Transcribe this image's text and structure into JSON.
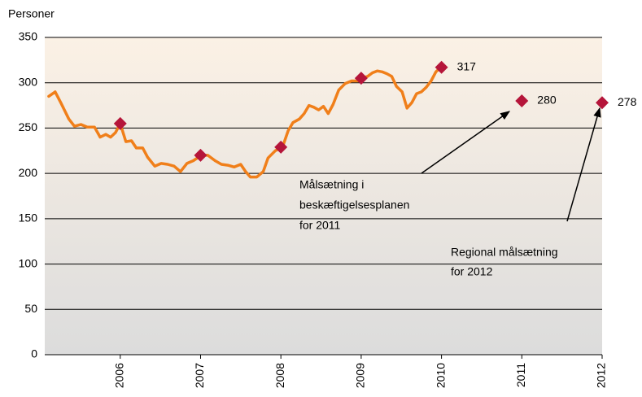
{
  "chart_data": {
    "type": "line",
    "ylabel": "Personer",
    "xlim": [
      2005.06,
      2012
    ],
    "xticks": [
      2006,
      2007,
      2008,
      2009,
      2010,
      2011,
      2012
    ],
    "ylim": [
      0,
      350
    ],
    "yticks": [
      0,
      50,
      100,
      150,
      200,
      250,
      300,
      350
    ],
    "grid": true,
    "series": [
      {
        "color": "#f07f1a",
        "x": [
          2005.11,
          2005.19,
          2005.26,
          2005.36,
          2005.43,
          2005.51,
          2005.59,
          2005.68,
          2005.75,
          2005.82,
          2005.88,
          2005.94,
          2006.0,
          2006.07,
          2006.14,
          2006.2,
          2006.28,
          2006.34,
          2006.43,
          2006.51,
          2006.59,
          2006.67,
          2006.75,
          2006.83,
          2006.91,
          2007.01,
          2007.09,
          2007.18,
          2007.26,
          2007.34,
          2007.42,
          2007.5,
          2007.56,
          2007.62,
          2007.7,
          2007.78,
          2007.84,
          2007.93,
          2008.02,
          2008.09,
          2008.15,
          2008.23,
          2008.29,
          2008.35,
          2008.41,
          2008.47,
          2008.53,
          2008.59,
          2008.65,
          2008.72,
          2008.8,
          2008.88,
          2008.96,
          2009.01,
          2009.08,
          2009.14,
          2009.2,
          2009.26,
          2009.32,
          2009.38,
          2009.44,
          2009.51,
          2009.57,
          2009.63,
          2009.69,
          2009.75,
          2009.81,
          2009.87,
          2009.93,
          2009.99
        ],
        "values": [
          285,
          290,
          278,
          260,
          252,
          254,
          251,
          251,
          240,
          243,
          240,
          245,
          255,
          235,
          236,
          228,
          228,
          218,
          208,
          211,
          210,
          208,
          202,
          211,
          214,
          220,
          220,
          214,
          210,
          209,
          207,
          210,
          202,
          196,
          196,
          202,
          217,
          225,
          229,
          247,
          256,
          260,
          266,
          275,
          273,
          270,
          274,
          266,
          276,
          292,
          299,
          302,
          302,
          305,
          307,
          311,
          313,
          312,
          310,
          307,
          296,
          290,
          272,
          278,
          288,
          290,
          295,
          302,
          312,
          317
        ]
      },
      {
        "color": "#b5153a",
        "marker": "diamond",
        "x": [
          2006,
          2007,
          2008,
          2009,
          2010,
          2011,
          2012
        ],
        "values": [
          255,
          220,
          229,
          305,
          317,
          280,
          278
        ],
        "value_labels": [
          null,
          null,
          null,
          null,
          "317",
          "280",
          "278"
        ]
      }
    ],
    "annotations": [
      {
        "lines": [
          "Målsætning i",
          "beskæftigelsesplanen",
          "for 2011"
        ]
      },
      {
        "lines": [
          "Regional målsætning",
          "for 2012"
        ]
      }
    ]
  }
}
